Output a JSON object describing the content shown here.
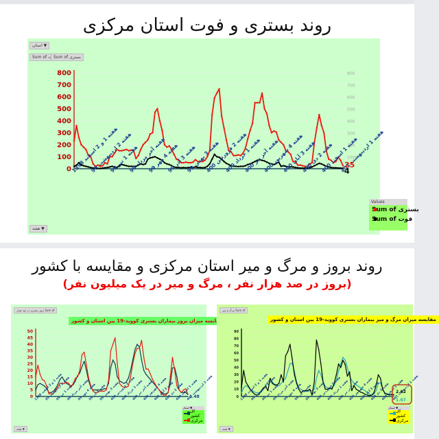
{
  "section1": {
    "title": "روند بستری و فوت استان مرکزی",
    "filter_button": "استان ▼",
    "field_buttons": [
      "Sum of فوت",
      "Sum of بستری"
    ],
    "bottom_button": "هفته ▼",
    "legend_header": "Values",
    "legend": [
      {
        "label": "Sum of بستری",
        "color": "#e8190f"
      },
      {
        "label": "Sum of فوت",
        "color": "#000000"
      }
    ],
    "end_labels": {
      "hospitalized": "25",
      "deaths": "4"
    }
  },
  "section2": {
    "title": "روند بروز و مرگ و میر استان مرکزی و مقایسه با کشور",
    "subtitle": "(بروز در صد هزار نفر ، مرگ و میر در یک میلیون نفر)"
  },
  "chart_left": {
    "title": "مقایسه میزان بروز بیماران بستری کووید-19 بین استان و کشور",
    "top_button": "بروز بستری در صد هزار Sum of",
    "bottom_button": "هفته ▼",
    "legend_header": "استان ▼",
    "legend": [
      {
        "label": "کل کشور",
        "color": "#0b3d4a"
      },
      {
        "label": "مرکزی",
        "color": "#e8190f"
      }
    ],
    "end_label": "1.48"
  },
  "chart_right": {
    "title": "مقایسه میزان مرگ و میر بیماران بستری کووید-19 بین استان و کشور",
    "top_button": "مرگ و میر Sum of",
    "bottom_button": "هفته ▼",
    "legend_header": "استان ▼",
    "legend": [
      {
        "label": "کل کشور",
        "color": "#2aa7b8"
      },
      {
        "label": "مرکزی",
        "color": "#000000"
      }
    ],
    "end_labels": [
      "2.62",
      "1.67"
    ]
  },
  "chart_data": [
    {
      "type": "line",
      "title": "روند بستری و فوت استان مرکزی",
      "xlabel": "",
      "ylabel": "",
      "ylim": [
        0,
        800
      ],
      "yticks": [
        0,
        100,
        200,
        300,
        400,
        500,
        600,
        700,
        800
      ],
      "grid": true,
      "legend_position": "bottom-right",
      "categories": [
        "هفته 1 و 2 اسفند 1398",
        "هفته 2 اردیبهشت 99",
        "هفته 1 تیر 99",
        "هفته آخر مرداد 99",
        "هفته 4 مهر 99",
        "هفته 3 آذر 99",
        "هفته 3 بهمن 99",
        "هفته 2 فروردین 400",
        "هفته 1 خرداد 400",
        "هفته آخر تیر 400",
        "هفته 4 شهریور 400",
        "هفته 3 آبان 400",
        "هفته 2 دی 400",
        "هفته 1 اسفند 400",
        "هفته 1 اردیبهشت 401"
      ],
      "series": [
        {
          "name": "Sum of بستری",
          "color": "#e8190f",
          "values": [
            230,
            360,
            260,
            200,
            180,
            160,
            110,
            100,
            40,
            20,
            30,
            20,
            25,
            50,
            40,
            100,
            100,
            130,
            160,
            150,
            150,
            155,
            160,
            150,
            155,
            150,
            85,
            110,
            160,
            200,
            220,
            240,
            290,
            300,
            470,
            500,
            400,
            320,
            200,
            180,
            190,
            160,
            120,
            80,
            70,
            50,
            50,
            55,
            50,
            50,
            55,
            75,
            60,
            60,
            60,
            70,
            100,
            150,
            450,
            590,
            630,
            665,
            440,
            340,
            240,
            150,
            140,
            110,
            110,
            115,
            110,
            130,
            170,
            250,
            320,
            380,
            550,
            550,
            550,
            630,
            500,
            460,
            360,
            300,
            315,
            305,
            240,
            220,
            200,
            150,
            140,
            120,
            60,
            60,
            30,
            30,
            25,
            20,
            20,
            40,
            50,
            220,
            340,
            450,
            360,
            300,
            150,
            80,
            70,
            50,
            60,
            95,
            70,
            25
          ]
        },
        {
          "name": "Sum of فوت",
          "color": "#000000",
          "values": [
            20,
            30,
            50,
            30,
            25,
            20,
            15,
            10,
            5,
            5,
            3,
            2,
            5,
            8,
            10,
            15,
            20,
            15,
            10,
            25,
            35,
            30,
            25,
            20,
            20,
            20,
            20,
            30,
            40,
            35,
            40,
            80,
            90,
            95,
            100,
            90,
            80,
            70,
            50,
            40,
            35,
            25,
            15,
            10,
            10,
            8,
            10,
            8,
            10,
            12,
            10,
            15,
            10,
            10,
            8,
            10,
            20,
            40,
            80,
            120,
            100,
            95,
            80,
            60,
            45,
            35,
            25,
            20,
            20,
            18,
            20,
            20,
            25,
            35,
            40,
            50,
            60,
            70,
            75,
            70,
            65,
            55,
            45,
            40,
            35,
            45,
            55,
            20,
            25,
            20,
            15,
            15,
            15,
            10,
            8,
            5,
            5,
            5,
            5,
            8,
            15,
            25,
            35,
            45,
            40,
            30,
            20,
            15,
            10,
            8,
            8,
            6,
            5,
            4
          ]
        }
      ]
    },
    {
      "type": "line",
      "title": "مقایسه میزان بروز بیماران بستری کووید-19 بین استان و کشور",
      "ylim": [
        0,
        50
      ],
      "yticks": [
        0,
        5,
        10,
        15,
        20,
        25,
        30,
        35,
        40,
        45,
        50
      ],
      "grid": true,
      "legend_position": "bottom-right",
      "categories": [
        "هفته 1 و 2 اسفند 1398",
        "هفته 2 اردیبهشت 99",
        "هفته 1 تیر 99",
        "هفته آخر مرداد 99",
        "هفته 4 مهر 99",
        "هفته 3 آذر 99",
        "هفته 3 بهمن 99",
        "هفته 2 فروردین 400",
        "هفته 1 خرداد 400",
        "هفته آخر تیر 400",
        "هفته 4 شهریور 400",
        "هفته 3 آبان 400",
        "هفته 2 دی 400",
        "هفته 1 اسفند 400",
        "هفته 1 اردیبهشت 401"
      ],
      "series": [
        {
          "name": "کل کشور",
          "color": "#0b3d4a",
          "values": [
            5,
            9,
            10,
            9,
            8,
            6,
            3,
            3,
            4,
            6,
            9,
            13,
            15,
            12,
            10,
            9,
            8,
            9,
            12,
            16,
            18,
            23,
            27,
            20,
            12,
            7,
            5,
            5,
            5,
            5,
            5,
            6,
            6,
            10,
            22,
            28,
            25,
            15,
            12,
            11,
            10,
            11,
            14,
            20,
            28,
            36,
            40,
            38,
            28,
            20,
            17,
            15,
            13,
            11,
            9,
            7,
            5,
            3,
            2,
            2,
            3,
            10,
            22,
            22,
            15,
            5,
            3,
            3,
            3,
            1.5
          ]
        },
        {
          "name": "مرکزی",
          "color": "#e8190f",
          "values": [
            15,
            24,
            17,
            13,
            12,
            8,
            2,
            2,
            2,
            5,
            7,
            10,
            10,
            10,
            11,
            10,
            7,
            10,
            14,
            15,
            20,
            32,
            34,
            24,
            14,
            8,
            4,
            3,
            3,
            4,
            4,
            4,
            5,
            12,
            35,
            40,
            45,
            25,
            10,
            8,
            7,
            7,
            8,
            15,
            25,
            33,
            37,
            37,
            43,
            30,
            21,
            21,
            17,
            13,
            10,
            7,
            5,
            2,
            1,
            1,
            3,
            15,
            30,
            20,
            8,
            5,
            3,
            5,
            6,
            1.48
          ]
        }
      ],
      "end_label": 1.48
    },
    {
      "type": "line",
      "title": "مقایسه میزان مرگ و میر بیماران بستری کووید-19 بین استان و کشور",
      "ylim": [
        0,
        90
      ],
      "yticks": [
        0,
        10,
        20,
        30,
        40,
        50,
        60,
        70,
        80,
        90
      ],
      "grid": true,
      "legend_position": "bottom-right",
      "categories": [
        "هفته 1 و 2 اسفند 1398",
        "هفته 2 اردیبهشت 99",
        "هفته 1 تیر 99",
        "هفته آخر مرداد 99",
        "هفته 4 مهر 99",
        "هفته 3 آذر 99",
        "هفته 3 بهمن 99",
        "هفته 2 فروردین 400",
        "هفته 1 خرداد 400",
        "هفته آخر تیر 400",
        "هفته 4 شهریور 400",
        "هفته 3 آبان 400",
        "هفته 2 دی 400",
        "هفته 1 اسفند 400",
        "هفته 1 اردیبهشت 401"
      ],
      "series": [
        {
          "name": "کل کشور",
          "color": "#2aa7b8",
          "values": [
            5,
            12,
            15,
            13,
            10,
            8,
            6,
            5,
            5,
            7,
            10,
            15,
            20,
            24,
            20,
            17,
            14,
            15,
            18,
            22,
            25,
            35,
            45,
            46,
            35,
            20,
            12,
            10,
            8,
            7,
            7,
            8,
            8,
            10,
            25,
            36,
            30,
            20,
            14,
            12,
            11,
            12,
            15,
            22,
            35,
            45,
            54,
            50,
            40,
            28,
            22,
            18,
            16,
            14,
            12,
            10,
            8,
            5,
            3,
            2,
            3,
            8,
            18,
            19,
            10,
            5,
            4,
            3,
            2,
            1.67
          ]
        },
        {
          "name": "مرکزی",
          "color": "#000000",
          "values": [
            12,
            36,
            20,
            15,
            10,
            6,
            3,
            2,
            3,
            8,
            12,
            14,
            8,
            25,
            18,
            16,
            16,
            18,
            30,
            20,
            56,
            62,
            72,
            52,
            30,
            18,
            10,
            5,
            8,
            8,
            8,
            10,
            2,
            20,
            78,
            65,
            45,
            20,
            10,
            10,
            12,
            10,
            18,
            30,
            45,
            40,
            50,
            44,
            28,
            34,
            8,
            15,
            10,
            8,
            6,
            5,
            3,
            2,
            1,
            2,
            5,
            15,
            30,
            25,
            10,
            4,
            3,
            2,
            3,
            2.62
          ]
        }
      ],
      "end_labels": [
        2.62,
        1.67
      ]
    }
  ]
}
